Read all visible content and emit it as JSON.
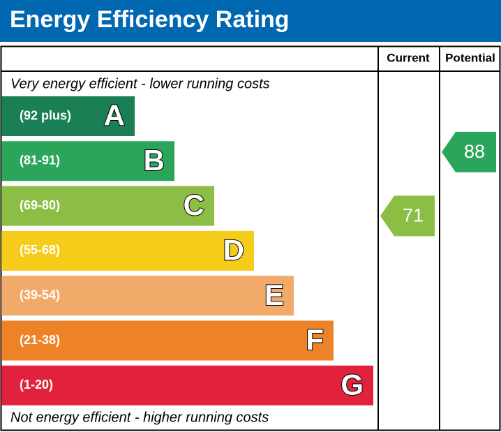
{
  "chart_data": {
    "type": "energy-rating",
    "title": "Energy Efficiency Rating",
    "columns": [
      "Current",
      "Potential"
    ],
    "top_note": "Very energy efficient - lower running costs",
    "bottom_note": "Not energy efficient - higher running costs",
    "bands": [
      {
        "range": "(92 plus)",
        "letter": "A",
        "color": "#1a7f54"
      },
      {
        "range": "(81-91)",
        "letter": "B",
        "color": "#2aa55a"
      },
      {
        "range": "(69-80)",
        "letter": "C",
        "color": "#8cbe45"
      },
      {
        "range": "(55-68)",
        "letter": "D",
        "color": "#f6cc1a"
      },
      {
        "range": "(39-54)",
        "letter": "E",
        "color": "#f2aa6a"
      },
      {
        "range": "(21-38)",
        "letter": "F",
        "color": "#ee8227"
      },
      {
        "range": "(1-20)",
        "letter": "G",
        "color": "#e2213c"
      }
    ],
    "ratings": [
      {
        "value": 71,
        "color": "#8cbe45"
      },
      {
        "value": 88,
        "color": "#2aa55a"
      }
    ],
    "header_color": "#0067b1"
  }
}
